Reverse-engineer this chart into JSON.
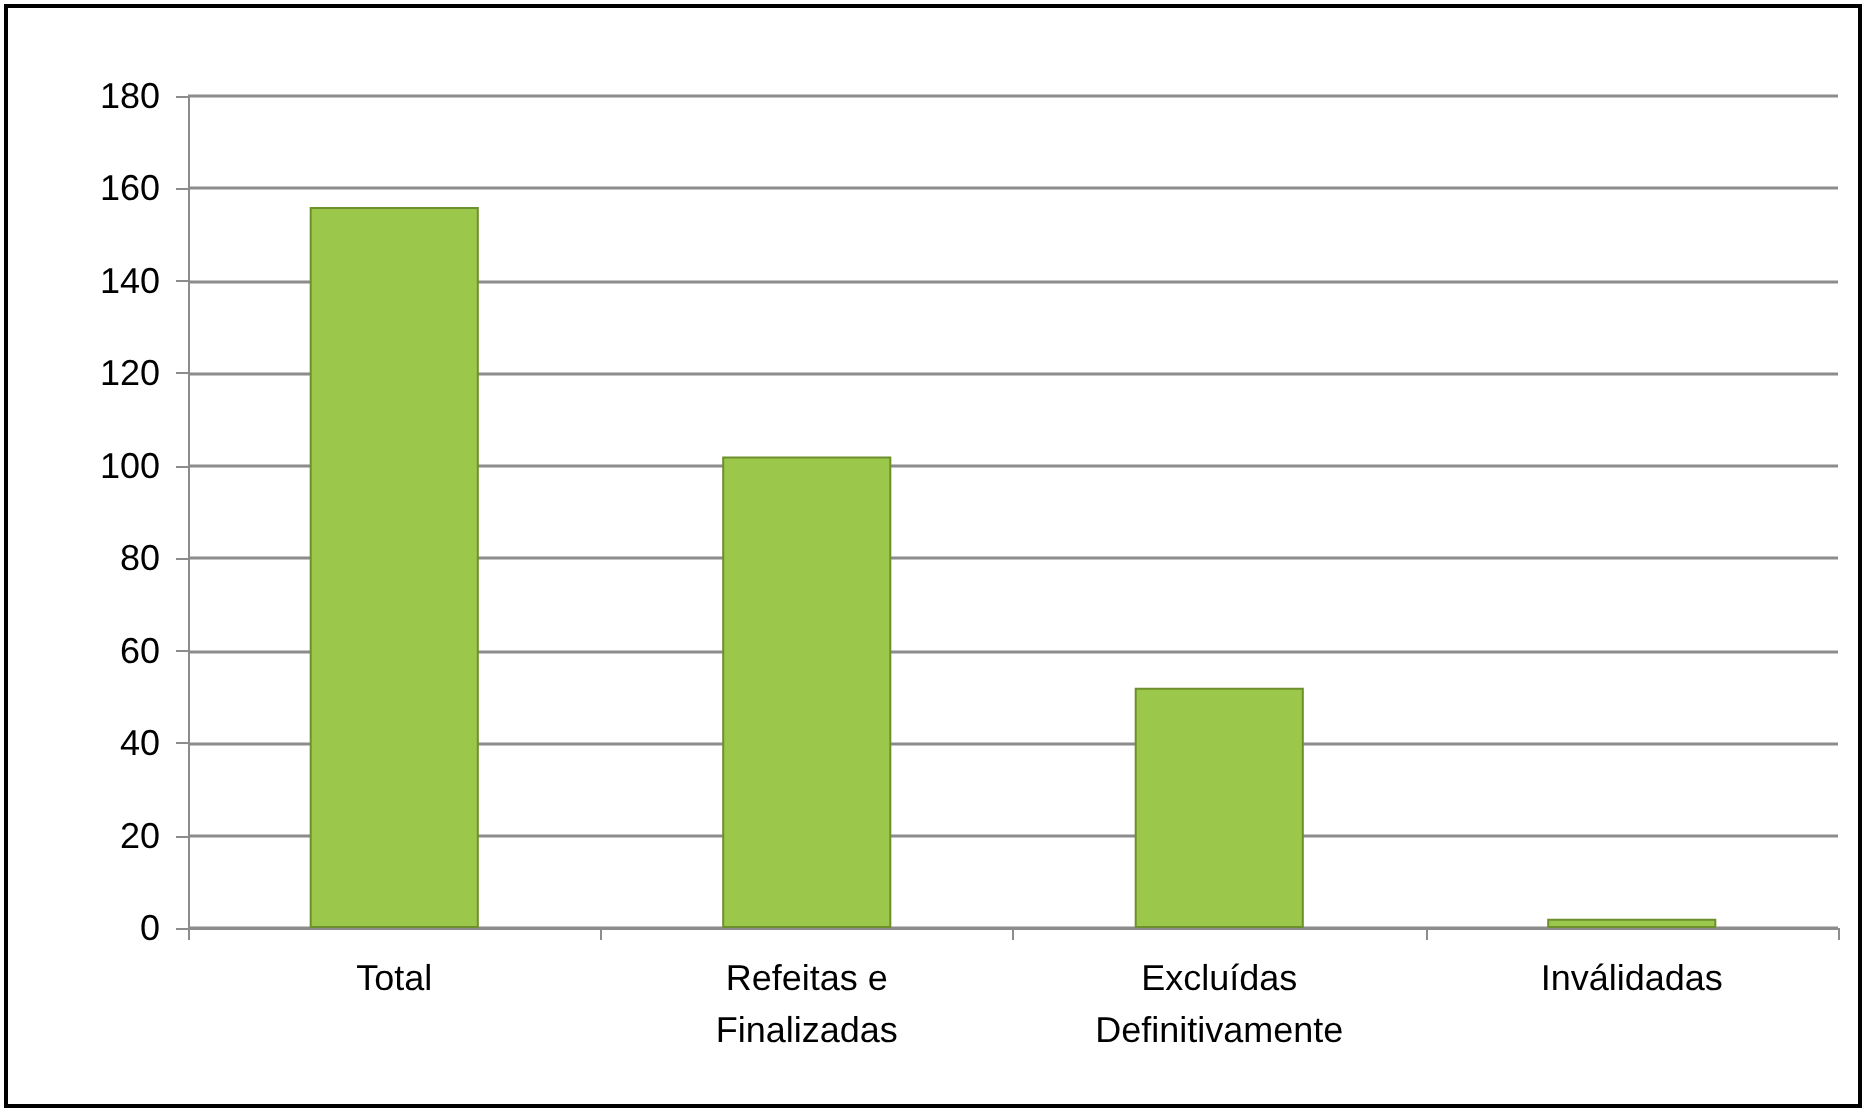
{
  "chart_data": {
    "type": "bar",
    "categories": [
      "Total",
      "Refeitas e\nFinalizadas",
      "Excluídas\nDefinitivamente",
      "Inválidadas"
    ],
    "values": [
      156,
      102,
      52,
      2
    ],
    "color": "#9bc84a",
    "ylim": [
      0,
      180
    ],
    "yticks": [
      0,
      20,
      40,
      60,
      80,
      100,
      120,
      140,
      160,
      180
    ],
    "grid": "y"
  }
}
